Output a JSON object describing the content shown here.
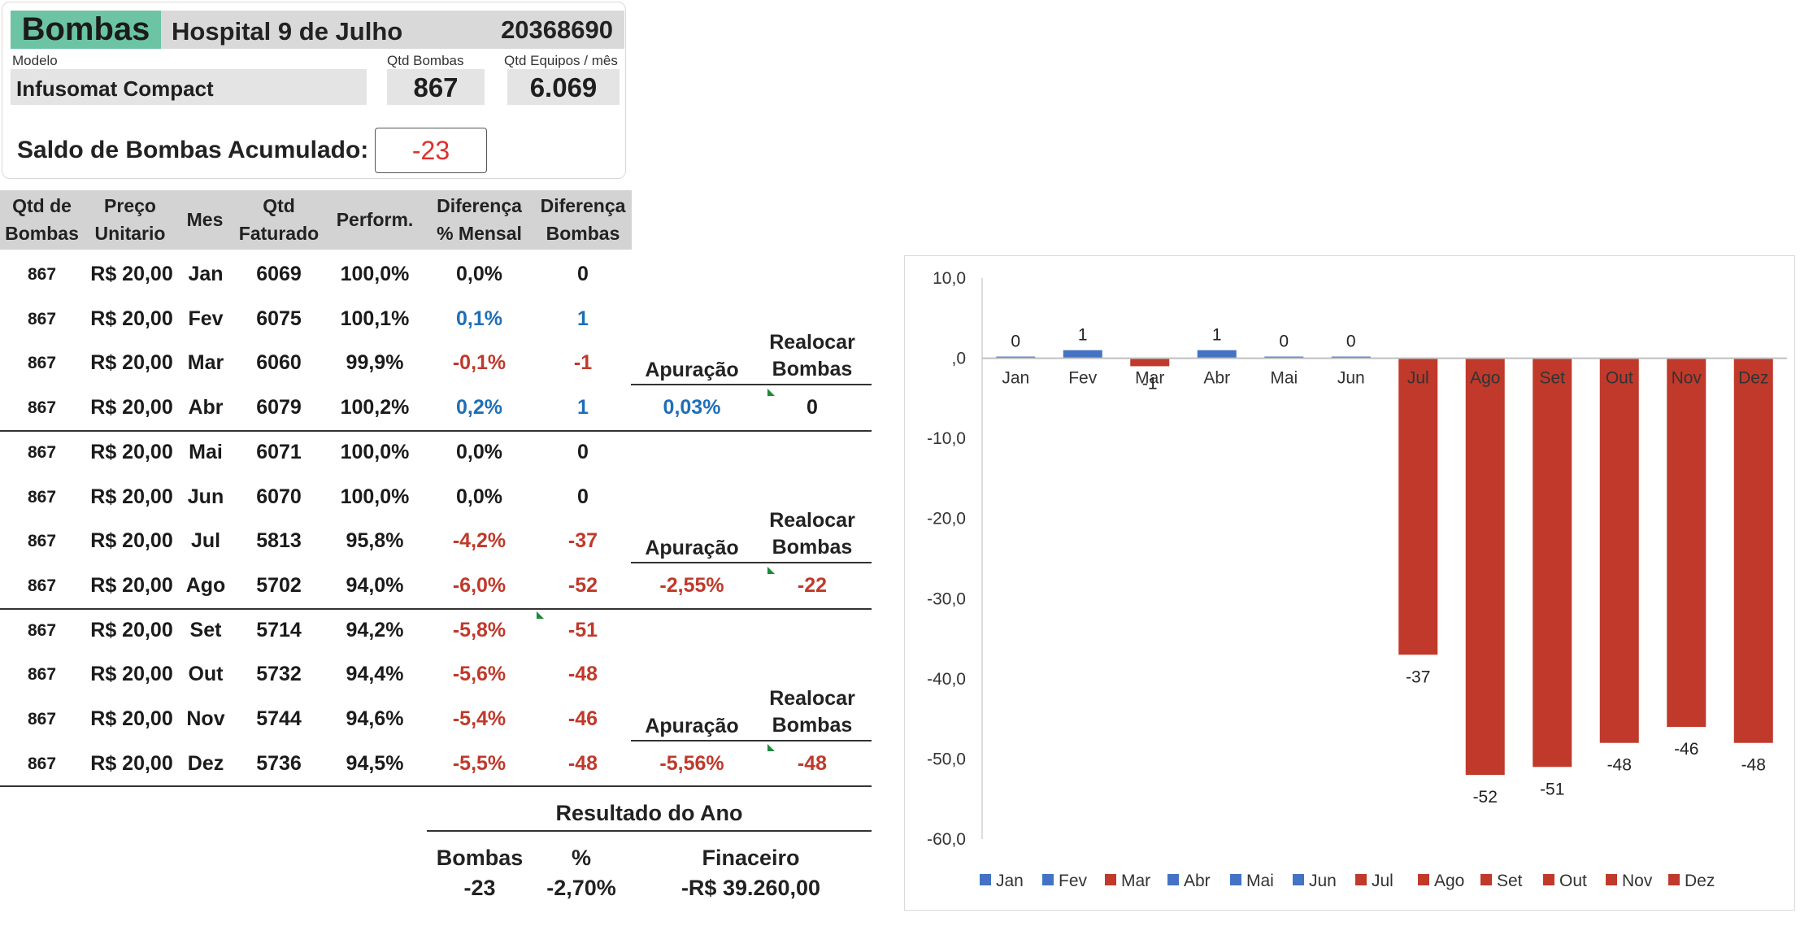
{
  "header": {
    "brand": "Bombas",
    "hospital": "Hospital 9 de Julho",
    "code": "20368690"
  },
  "info": {
    "modelo_label": "Modelo",
    "modelo_value": "Infusomat Compact",
    "qtd_bombas_label": "Qtd Bombas",
    "qtd_bombas_value": "867",
    "qtd_equipos_label": "Qtd Equipos / mês",
    "qtd_equipos_value": "6.069"
  },
  "saldo": {
    "label": "Saldo de Bombas Acumulado:",
    "value": "-23"
  },
  "table": {
    "headers": [
      [
        "Qtd de",
        "Bombas"
      ],
      [
        "Preço",
        "Unitario"
      ],
      [
        "Mes"
      ],
      [
        "Qtd",
        "Faturado"
      ],
      [
        "Perform."
      ],
      [
        "Diferença",
        "% Mensal"
      ],
      [
        "Diferença",
        "Bombas"
      ]
    ],
    "rows": [
      {
        "qtd": "867",
        "preco": "R$ 20,00",
        "mes": "Jan",
        "faturado": "6069",
        "perf": "100,0%",
        "dif_pct": "0,0%",
        "dif_bombas": "0",
        "tone": "neutral"
      },
      {
        "qtd": "867",
        "preco": "R$ 20,00",
        "mes": "Fev",
        "faturado": "6075",
        "perf": "100,1%",
        "dif_pct": "0,1%",
        "dif_bombas": "1",
        "tone": "pos"
      },
      {
        "qtd": "867",
        "preco": "R$ 20,00",
        "mes": "Mar",
        "faturado": "6060",
        "perf": "99,9%",
        "dif_pct": "-0,1%",
        "dif_bombas": "-1",
        "tone": "neg"
      },
      {
        "qtd": "867",
        "preco": "R$ 20,00",
        "mes": "Abr",
        "faturado": "6079",
        "perf": "100,2%",
        "dif_pct": "0,2%",
        "dif_bombas": "1",
        "tone": "pos"
      },
      {
        "qtd": "867",
        "preco": "R$ 20,00",
        "mes": "Mai",
        "faturado": "6071",
        "perf": "100,0%",
        "dif_pct": "0,0%",
        "dif_bombas": "0",
        "tone": "neutral"
      },
      {
        "qtd": "867",
        "preco": "R$ 20,00",
        "mes": "Jun",
        "faturado": "6070",
        "perf": "100,0%",
        "dif_pct": "0,0%",
        "dif_bombas": "0",
        "tone": "neutral"
      },
      {
        "qtd": "867",
        "preco": "R$ 20,00",
        "mes": "Jul",
        "faturado": "5813",
        "perf": "95,8%",
        "dif_pct": "-4,2%",
        "dif_bombas": "-37",
        "tone": "neg"
      },
      {
        "qtd": "867",
        "preco": "R$ 20,00",
        "mes": "Ago",
        "faturado": "5702",
        "perf": "94,0%",
        "dif_pct": "-6,0%",
        "dif_bombas": "-52",
        "tone": "neg"
      },
      {
        "qtd": "867",
        "preco": "R$ 20,00",
        "mes": "Set",
        "faturado": "5714",
        "perf": "94,2%",
        "dif_pct": "-5,8%",
        "dif_bombas": "-51",
        "tone": "neg"
      },
      {
        "qtd": "867",
        "preco": "R$ 20,00",
        "mes": "Out",
        "faturado": "5732",
        "perf": "94,4%",
        "dif_pct": "-5,6%",
        "dif_bombas": "-48",
        "tone": "neg"
      },
      {
        "qtd": "867",
        "preco": "R$ 20,00",
        "mes": "Nov",
        "faturado": "5744",
        "perf": "94,6%",
        "dif_pct": "-5,4%",
        "dif_bombas": "-46",
        "tone": "neg"
      },
      {
        "qtd": "867",
        "preco": "R$ 20,00",
        "mes": "Dez",
        "faturado": "5736",
        "perf": "94,5%",
        "dif_pct": "-5,5%",
        "dif_bombas": "-48",
        "tone": "neg"
      }
    ]
  },
  "groups": [
    {
      "apuracao_label": "Apuração",
      "realocar_label_1": "Realocar",
      "realocar_label_2": "Bombas",
      "apuracao_value": "0,03%",
      "realocar_value": "0",
      "tone": "pos"
    },
    {
      "apuracao_label": "Apuração",
      "realocar_label_1": "Realocar",
      "realocar_label_2": "Bombas",
      "apuracao_value": "-2,55%",
      "realocar_value": "-22",
      "tone": "neg"
    },
    {
      "apuracao_label": "Apuração",
      "realocar_label_1": "Realocar",
      "realocar_label_2": "Bombas",
      "apuracao_value": "-5,56%",
      "realocar_value": "-48",
      "tone": "neg"
    }
  ],
  "resultado": {
    "title": "Resultado do Ano",
    "bombas_label": "Bombas",
    "pct_label": "%",
    "financeiro_label": "Finaceiro",
    "bombas_value": "-23",
    "pct_value": "-2,70%",
    "financeiro_value": "-R$ 39.260,00"
  },
  "colors": {
    "positive": "#4472c4",
    "negative": "#c0392b",
    "positive_text": "#1f6fb7",
    "brand": "#6cc4a4"
  },
  "chart_data": {
    "type": "bar",
    "categories": [
      "Jan",
      "Fev",
      "Mar",
      "Abr",
      "Mai",
      "Jun",
      "Jul",
      "Ago",
      "Set",
      "Out",
      "Nov",
      "Dez"
    ],
    "values": [
      0,
      1,
      -1,
      1,
      0,
      0,
      -37,
      -52,
      -51,
      -48,
      -46,
      -48
    ],
    "data_labels": [
      "0",
      "1",
      "-1",
      "1",
      "0",
      "0",
      "-37",
      "-52",
      "-51",
      "-48",
      "-46",
      "-48"
    ],
    "y_ticks": [
      "10,0",
      ",0",
      "-10,0",
      "-20,0",
      "-30,0",
      "-40,0",
      "-50,0",
      "-60,0"
    ],
    "ylim": [
      -60,
      10
    ],
    "legend": [
      "Jan",
      "Fev",
      "Mar",
      "Abr",
      "Mai",
      "Jun",
      "Jul",
      "Ago",
      "Set",
      "Out",
      "Nov",
      "Dez"
    ],
    "legend_position": "bottom",
    "grid": false
  }
}
